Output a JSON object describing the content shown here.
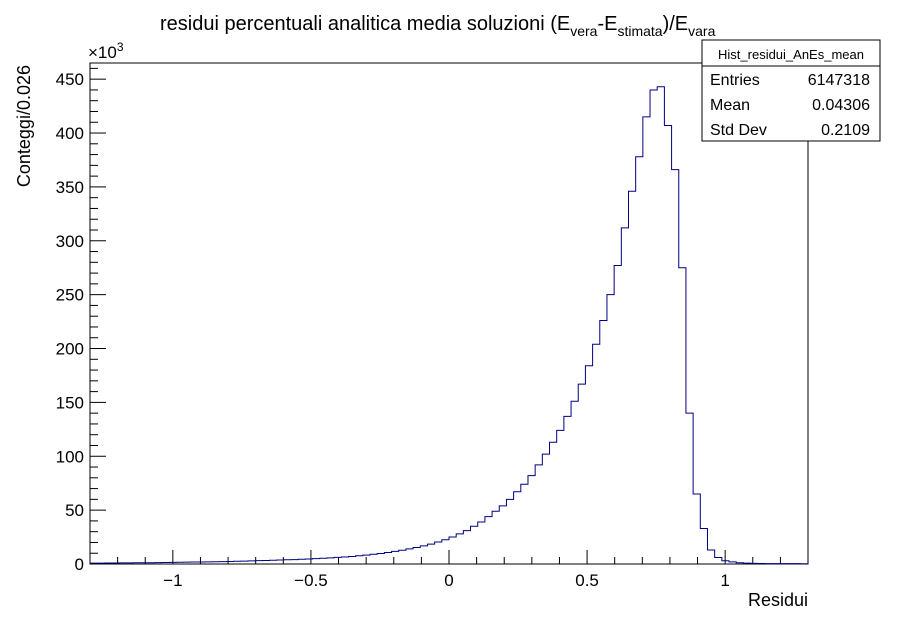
{
  "chart_data": {
    "type": "bar",
    "title_main": "residui percentuali analitica media soluzioni (E",
    "title_sub1": "vera",
    "title_mid": "-E",
    "title_sub2": "stimata",
    "title_mid2": ")/E",
    "title_sub3": "vara",
    "xlabel": "Residui",
    "ylabel": "Conteggi/0.026",
    "y_multiplier": "×10",
    "y_multiplier_exp": "3",
    "xlim": [
      -1.3,
      1.3
    ],
    "ylim": [
      0,
      465
    ],
    "x_ticks": [
      -1,
      -0.5,
      0,
      0.5,
      1
    ],
    "x_tick_labels": [
      "−1",
      "−0.5",
      "0",
      "0.5",
      "1"
    ],
    "y_ticks": [
      0,
      50,
      100,
      150,
      200,
      250,
      300,
      350,
      400,
      450
    ],
    "y_tick_labels": [
      "0",
      "50",
      "100",
      "150",
      "200",
      "250",
      "300",
      "350",
      "400",
      "450"
    ],
    "bin_width": 0.026,
    "bins_start": -1.3,
    "values": [
      0.8,
      0.8,
      0.9,
      0.9,
      1.0,
      1.0,
      1.1,
      1.1,
      1.2,
      1.3,
      1.4,
      1.5,
      1.6,
      1.7,
      1.8,
      1.9,
      2.0,
      2.1,
      2.2,
      2.3,
      2.5,
      2.7,
      2.9,
      3.1,
      3.3,
      3.5,
      3.7,
      3.9,
      4.1,
      4.4,
      4.7,
      5,
      5.3,
      5.7,
      6.1,
      6.5,
      7,
      7.6,
      8.2,
      9,
      9.8,
      10.7,
      11.7,
      12.8,
      14,
      15.3,
      16.8,
      18.5,
      20.4,
      22.5,
      25,
      28,
      31,
      35,
      39,
      44,
      49,
      54,
      60,
      67,
      74,
      82,
      92,
      102,
      113,
      124,
      137,
      151,
      167,
      184,
      204,
      226,
      250,
      277,
      312,
      346,
      378,
      415,
      440,
      443,
      407,
      366,
      275,
      140,
      65,
      33,
      13,
      6,
      3,
      2,
      1.2,
      0.8,
      0.6,
      0.5,
      0.4,
      0.4,
      0.3,
      0.3,
      0.3,
      0.2
    ],
    "series_color": "#000080"
  },
  "stats": {
    "name": "Hist_residui_AnEs_mean",
    "rows": [
      {
        "label": "Entries",
        "value": "6147318"
      },
      {
        "label": "Mean",
        "value": "0.04306"
      },
      {
        "label": "Std Dev",
        "value": "0.2109"
      }
    ]
  }
}
